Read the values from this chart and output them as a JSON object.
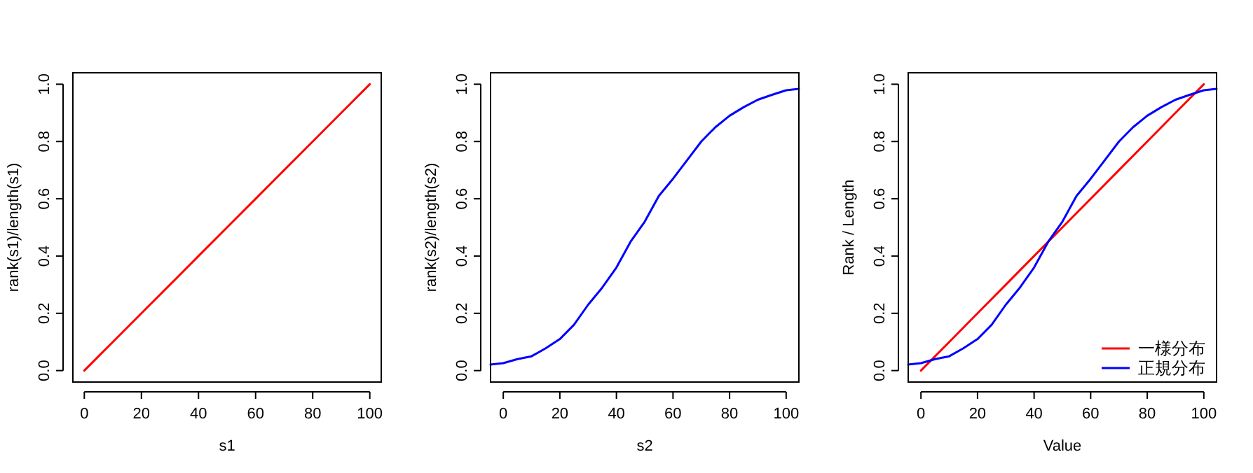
{
  "chart_data": [
    {
      "type": "line",
      "xlabel": "s1",
      "ylabel": "rank(s1)/length(s1)",
      "xlim": [
        -4,
        104
      ],
      "ylim": [
        -0.04,
        1.04
      ],
      "xticks": [
        0,
        20,
        40,
        60,
        80,
        100
      ],
      "yticks": [
        {
          "value": 0,
          "label": "0.0"
        },
        {
          "value": 0.2,
          "label": "0.2"
        },
        {
          "value": 0.4,
          "label": "0.4"
        },
        {
          "value": 0.6,
          "label": "0.6"
        },
        {
          "value": 0.8,
          "label": "0.8"
        },
        {
          "value": 1,
          "label": "1.0"
        }
      ],
      "series": [
        {
          "color": "#ff0000",
          "x": [
            0,
            5,
            10,
            20,
            30,
            40,
            50,
            60,
            70,
            80,
            90,
            100
          ],
          "values": [
            0,
            0.05,
            0.1,
            0.2,
            0.3,
            0.4,
            0.5,
            0.6,
            0.7,
            0.8,
            0.9,
            1.0
          ]
        }
      ]
    },
    {
      "type": "line",
      "xlabel": "s2",
      "ylabel": "rank(s2)/length(s2)",
      "xlim": [
        -4.5,
        104.5
      ],
      "ylim": [
        -0.04,
        1.04
      ],
      "xticks": [
        0,
        20,
        40,
        60,
        80,
        100
      ],
      "yticks": [
        {
          "value": 0,
          "label": "0.0"
        },
        {
          "value": 0.2,
          "label": "0.2"
        },
        {
          "value": 0.4,
          "label": "0.4"
        },
        {
          "value": 0.6,
          "label": "0.6"
        },
        {
          "value": 0.8,
          "label": "0.8"
        },
        {
          "value": 1,
          "label": "1.0"
        }
      ],
      "series": [
        {
          "color": "#0000ff",
          "x": [
            -4.5,
            0,
            5,
            10,
            15,
            20,
            25,
            30,
            35,
            40,
            45,
            50,
            55,
            60,
            65,
            70,
            75,
            80,
            85,
            90,
            95,
            100,
            104.5
          ],
          "values": [
            0.021,
            0.026,
            0.04,
            0.05,
            0.078,
            0.11,
            0.16,
            0.23,
            0.29,
            0.36,
            0.45,
            0.52,
            0.61,
            0.67,
            0.735,
            0.8,
            0.85,
            0.89,
            0.92,
            0.946,
            0.963,
            0.979,
            0.984
          ]
        }
      ]
    },
    {
      "type": "line",
      "xlabel": "Value",
      "ylabel": "Rank / Length",
      "xlim": [
        -4.5,
        104.5
      ],
      "ylim": [
        -0.04,
        1.04
      ],
      "xticks": [
        0,
        20,
        40,
        60,
        80,
        100
      ],
      "yticks": [
        {
          "value": 0,
          "label": "0.0"
        },
        {
          "value": 0.2,
          "label": "0.2"
        },
        {
          "value": 0.4,
          "label": "0.4"
        },
        {
          "value": 0.6,
          "label": "0.6"
        },
        {
          "value": 0.8,
          "label": "0.8"
        },
        {
          "value": 1,
          "label": "1.0"
        }
      ],
      "legend": "bottom right",
      "series": [
        {
          "name": "一様分布",
          "color": "#ff0000",
          "x": [
            0,
            5,
            10,
            20,
            30,
            40,
            50,
            60,
            70,
            80,
            90,
            100
          ],
          "values": [
            0,
            0.05,
            0.1,
            0.2,
            0.3,
            0.4,
            0.5,
            0.6,
            0.7,
            0.8,
            0.9,
            1.0
          ]
        },
        {
          "name": "正規分布",
          "color": "#0000ff",
          "x": [
            -4.5,
            0,
            5,
            10,
            15,
            20,
            25,
            30,
            35,
            40,
            45,
            50,
            55,
            60,
            65,
            70,
            75,
            80,
            85,
            90,
            95,
            100,
            104.5
          ],
          "values": [
            0.021,
            0.026,
            0.04,
            0.05,
            0.078,
            0.11,
            0.16,
            0.23,
            0.29,
            0.36,
            0.45,
            0.52,
            0.61,
            0.67,
            0.735,
            0.8,
            0.85,
            0.89,
            0.92,
            0.946,
            0.963,
            0.979,
            0.984
          ]
        }
      ]
    }
  ]
}
